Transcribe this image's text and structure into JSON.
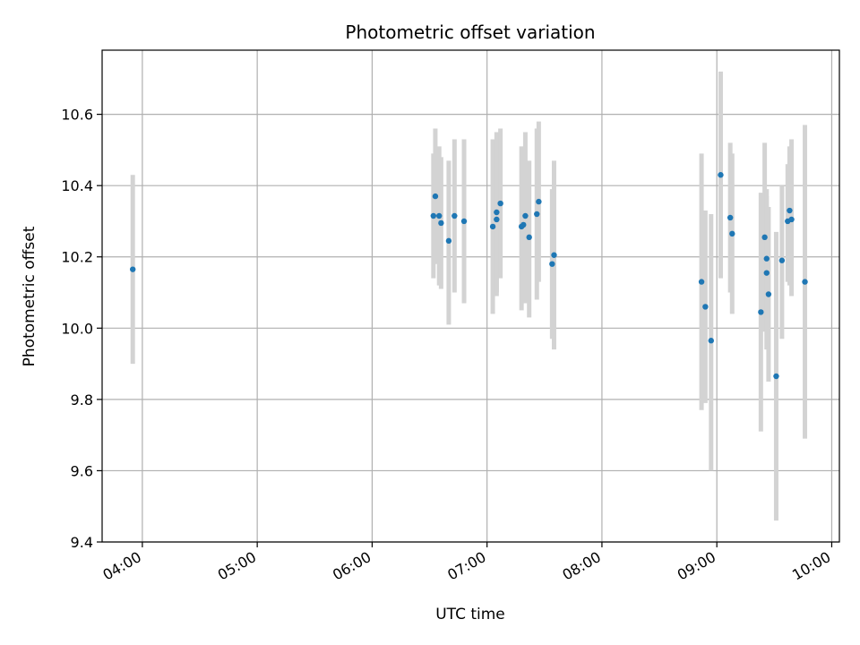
{
  "chart_data": {
    "type": "scatter",
    "title": "Photometric offset variation",
    "xlabel": "UTC time",
    "ylabel": "Photometric offset",
    "x_axis_type": "time",
    "xlim": [
      "03:39",
      "10:04"
    ],
    "ylim": [
      9.4,
      10.78
    ],
    "x_ticks": [
      "04:00",
      "05:00",
      "06:00",
      "07:00",
      "08:00",
      "09:00",
      "10:00"
    ],
    "y_ticks": [
      "9.4",
      "9.6",
      "9.8",
      "10.0",
      "10.2",
      "10.4",
      "10.6"
    ],
    "grid": true,
    "colors": {
      "points": "#1f77b4",
      "errorbars": "#d3d3d3",
      "grid": "#b0b0b0"
    },
    "points": [
      {
        "x": "03:55",
        "y": 10.165,
        "err_low": 9.9,
        "err_high": 10.43
      },
      {
        "x": "06:32",
        "y": 10.315,
        "err_low": 10.14,
        "err_high": 10.49
      },
      {
        "x": "06:33",
        "y": 10.37,
        "err_low": 10.18,
        "err_high": 10.56
      },
      {
        "x": "06:35",
        "y": 10.315,
        "err_low": 10.12,
        "err_high": 10.51
      },
      {
        "x": "06:36",
        "y": 10.295,
        "err_low": 10.11,
        "err_high": 10.48
      },
      {
        "x": "06:40",
        "y": 10.245,
        "err_low": 10.01,
        "err_high": 10.47
      },
      {
        "x": "06:43",
        "y": 10.315,
        "err_low": 10.1,
        "err_high": 10.53
      },
      {
        "x": "06:48",
        "y": 10.3,
        "err_low": 10.07,
        "err_high": 10.53
      },
      {
        "x": "07:03",
        "y": 10.285,
        "err_low": 10.04,
        "err_high": 10.53
      },
      {
        "x": "07:05",
        "y": 10.325,
        "err_low": 10.1,
        "err_high": 10.55
      },
      {
        "x": "07:05",
        "y": 10.305,
        "err_low": 10.09,
        "err_high": 10.53
      },
      {
        "x": "07:07",
        "y": 10.35,
        "err_low": 10.14,
        "err_high": 10.56
      },
      {
        "x": "07:18",
        "y": 10.285,
        "err_low": 10.05,
        "err_high": 10.51
      },
      {
        "x": "07:19",
        "y": 10.29,
        "err_low": 10.08,
        "err_high": 10.5
      },
      {
        "x": "07:20",
        "y": 10.315,
        "err_low": 10.07,
        "err_high": 10.55
      },
      {
        "x": "07:22",
        "y": 10.255,
        "err_low": 10.03,
        "err_high": 10.47
      },
      {
        "x": "07:26",
        "y": 10.32,
        "err_low": 10.08,
        "err_high": 10.56
      },
      {
        "x": "07:27",
        "y": 10.355,
        "err_low": 10.13,
        "err_high": 10.58
      },
      {
        "x": "07:34",
        "y": 10.18,
        "err_low": 9.97,
        "err_high": 10.39
      },
      {
        "x": "07:35",
        "y": 10.205,
        "err_low": 9.94,
        "err_high": 10.47
      },
      {
        "x": "08:52",
        "y": 10.13,
        "err_low": 9.77,
        "err_high": 10.49
      },
      {
        "x": "08:54",
        "y": 10.06,
        "err_low": 9.79,
        "err_high": 10.33
      },
      {
        "x": "08:57",
        "y": 9.965,
        "err_low": 9.6,
        "err_high": 10.32
      },
      {
        "x": "09:02",
        "y": 10.43,
        "err_low": 10.14,
        "err_high": 10.72
      },
      {
        "x": "09:07",
        "y": 10.31,
        "err_low": 10.1,
        "err_high": 10.52
      },
      {
        "x": "09:08",
        "y": 10.265,
        "err_low": 10.04,
        "err_high": 10.49
      },
      {
        "x": "09:23",
        "y": 10.045,
        "err_low": 9.71,
        "err_high": 10.38
      },
      {
        "x": "09:25",
        "y": 10.255,
        "err_low": 9.99,
        "err_high": 10.52
      },
      {
        "x": "09:26",
        "y": 10.195,
        "err_low": 10.0,
        "err_high": 10.39
      },
      {
        "x": "09:26",
        "y": 10.155,
        "err_low": 9.94,
        "err_high": 10.37
      },
      {
        "x": "09:27",
        "y": 10.095,
        "err_low": 9.85,
        "err_high": 10.34
      },
      {
        "x": "09:31",
        "y": 9.865,
        "err_low": 9.46,
        "err_high": 10.27
      },
      {
        "x": "09:34",
        "y": 10.19,
        "err_low": 9.97,
        "err_high": 10.4
      },
      {
        "x": "09:37",
        "y": 10.3,
        "err_low": 10.13,
        "err_high": 10.46
      },
      {
        "x": "09:38",
        "y": 10.33,
        "err_low": 10.12,
        "err_high": 10.51
      },
      {
        "x": "09:39",
        "y": 10.305,
        "err_low": 10.09,
        "err_high": 10.53
      },
      {
        "x": "09:46",
        "y": 10.13,
        "err_low": 9.69,
        "err_high": 10.57
      }
    ]
  }
}
